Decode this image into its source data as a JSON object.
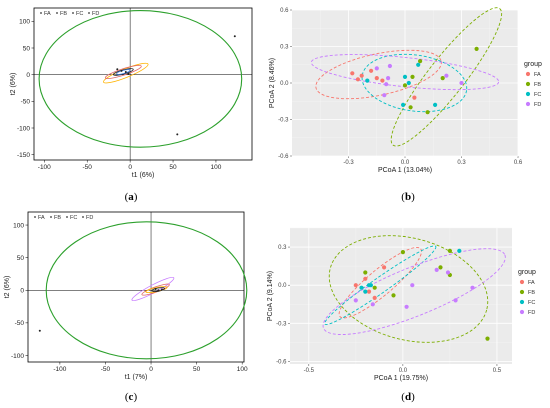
{
  "captions": {
    "a": "(a)",
    "b": "(b)",
    "c": "(c)",
    "d": "(d)"
  },
  "colors": {
    "FA": "#f8766d",
    "FB": "#7cae00",
    "FC": "#00bfc4",
    "FD": "#c77cff",
    "hotelling": "#2ca02c"
  },
  "chart_data": [
    {
      "panel": "a",
      "type": "scatter",
      "xlabel": "t1 (6%)",
      "ylabel": "t2 (6%)",
      "xlim": [
        -112,
        142
      ],
      "ylim": [
        -160,
        125
      ],
      "xticks": [
        "-100",
        "-50",
        "0",
        "50",
        "100"
      ],
      "yticks": [
        "100",
        "50",
        "0",
        "-50",
        "-100",
        "-150"
      ],
      "legend": [
        "FA",
        "FB",
        "FC",
        "FD"
      ],
      "hotelling": {
        "cx": 12,
        "cy": -8,
        "rx": 118,
        "ry": 128
      },
      "ellipses": [
        {
          "group": "FD",
          "color": "#ffb300",
          "cx": -5,
          "cy": 3,
          "rx": 28,
          "ry": 8,
          "angle": 22
        },
        {
          "group": "FA",
          "color": "#e06666",
          "cx": -8,
          "cy": 5,
          "rx": 22,
          "ry": 6,
          "angle": 18
        },
        {
          "group": "FB",
          "color": "#222222",
          "cx": -8,
          "cy": 5,
          "rx": 12,
          "ry": 4,
          "angle": 15
        },
        {
          "group": "FC",
          "color": "#3c78d8",
          "cx": -8,
          "cy": 5,
          "rx": 8,
          "ry": 3,
          "angle": 15
        }
      ],
      "points": [
        {
          "x": 122,
          "y": 72
        },
        {
          "x": 55,
          "y": -112
        },
        {
          "x": -15,
          "y": 10
        },
        {
          "x": -5,
          "y": 5
        },
        {
          "x": -2,
          "y": 2
        },
        {
          "x": -10,
          "y": 7
        }
      ]
    },
    {
      "panel": "b",
      "type": "scatter",
      "xlabel": "PCoA 1 (13.04%)",
      "ylabel": "PCoA 2 (8.46%)",
      "xlim": [
        -0.6,
        0.6
      ],
      "ylim": [
        -0.6,
        0.6
      ],
      "xticks": [
        "-0.3",
        "0.0",
        "0.3",
        "0.6"
      ],
      "yticks": [
        "0.6",
        "0.3",
        "0.0",
        "-0.3",
        "-0.6"
      ],
      "legend_title": "group",
      "legend": [
        "FA",
        "FB",
        "FC",
        "FD"
      ],
      "ellipses": [
        {
          "group": "FA",
          "cx": -0.14,
          "cy": 0.07,
          "rx": 0.34,
          "ry": 0.17,
          "angle": 12
        },
        {
          "group": "FB",
          "cx": 0.22,
          "cy": 0.05,
          "rx": 0.46,
          "ry": 0.15,
          "angle": 52
        },
        {
          "group": "FC",
          "cx": 0.05,
          "cy": 0.0,
          "rx": 0.28,
          "ry": 0.23,
          "angle": -8
        },
        {
          "group": "FD",
          "cx": 0.0,
          "cy": 0.09,
          "rx": 0.5,
          "ry": 0.12,
          "angle": -6
        }
      ],
      "series": [
        {
          "name": "FA",
          "x": [
            -0.28,
            -0.23,
            -0.18,
            -0.15,
            -0.25,
            -0.12,
            0.05
          ],
          "y": [
            0.08,
            0.06,
            0.1,
            0.04,
            0.03,
            0.02,
            -0.12
          ]
        },
        {
          "name": "FB",
          "x": [
            0.04,
            0.08,
            0.2,
            0.38,
            0.03,
            0.0,
            0.12
          ],
          "y": [
            0.05,
            0.18,
            0.04,
            0.28,
            -0.2,
            -0.02,
            -0.24
          ]
        },
        {
          "name": "FC",
          "x": [
            -0.2,
            0.07,
            0.16,
            0.02,
            -0.01,
            0.0
          ],
          "y": [
            0.02,
            0.15,
            -0.18,
            0.0,
            -0.18,
            0.05
          ]
        },
        {
          "name": "FD",
          "x": [
            -0.15,
            -0.08,
            -0.09,
            -0.1,
            0.22,
            0.3,
            -0.11
          ],
          "y": [
            0.12,
            0.14,
            0.04,
            -0.01,
            0.06,
            0.0,
            -0.1
          ]
        }
      ]
    },
    {
      "panel": "c",
      "type": "scatter",
      "xlabel": "t1 (7%)",
      "ylabel": "t2 (6%)",
      "xlim": [
        -135,
        102
      ],
      "ylim": [
        -110,
        120
      ],
      "xticks": [
        "-100",
        "-50",
        "0",
        "50",
        "100"
      ],
      "yticks": [
        "100",
        "50",
        "0",
        "-50",
        "-100"
      ],
      "legend": [
        "FA",
        "FB",
        "FC",
        "FD"
      ],
      "hotelling": {
        "cx": -5,
        "cy": 0,
        "rx": 110,
        "ry": 105
      },
      "ellipses": [
        {
          "group": "FD",
          "color": "#c77cff",
          "cx": 2,
          "cy": 2,
          "rx": 26,
          "ry": 6,
          "angle": 28
        },
        {
          "group": "FA",
          "color": "#e06666",
          "cx": 5,
          "cy": 1,
          "rx": 16,
          "ry": 4,
          "angle": 20
        },
        {
          "group": "FC",
          "color": "#ffb300",
          "cx": 6,
          "cy": 1,
          "rx": 12,
          "ry": 3,
          "angle": 12
        },
        {
          "group": "FB",
          "color": "#222222",
          "cx": 8,
          "cy": 1,
          "rx": 7,
          "ry": 2.5,
          "angle": 10
        }
      ],
      "points": [
        {
          "x": -122,
          "y": -62
        },
        {
          "x": 5,
          "y": 2
        },
        {
          "x": 8,
          "y": 0
        },
        {
          "x": 12,
          "y": 1
        }
      ]
    },
    {
      "panel": "d",
      "type": "scatter",
      "xlabel": "PCoA 1 (19.75%)",
      "ylabel": "PCoA 2 (9.14%)",
      "xlim": [
        -0.6,
        0.58
      ],
      "ylim": [
        -0.62,
        0.45
      ],
      "xticks": [
        "-0.5",
        "0.0",
        "0.5"
      ],
      "yticks": [
        "0.3",
        "0.0",
        "-0.3",
        "-0.6"
      ],
      "legend_title": "group",
      "legend": [
        "FA",
        "FB",
        "FC",
        "FD"
      ],
      "ellipses": [
        {
          "group": "FA",
          "cx": -0.12,
          "cy": 0.02,
          "rx": 0.28,
          "ry": 0.1,
          "angle": 40
        },
        {
          "group": "FB",
          "cx": 0.03,
          "cy": -0.03,
          "rx": 0.43,
          "ry": 0.4,
          "angle": -15
        },
        {
          "group": "FC",
          "cx": -0.12,
          "cy": 0.0,
          "rx": 0.36,
          "ry": 0.06,
          "angle": 35
        },
        {
          "group": "FD",
          "cx": 0.06,
          "cy": -0.05,
          "rx": 0.52,
          "ry": 0.19,
          "angle": 22
        }
      ],
      "series": [
        {
          "name": "FA",
          "x": [
            -0.2,
            -0.25,
            -0.1,
            -0.18,
            -0.15
          ],
          "y": [
            0.05,
            0.0,
            0.14,
            -0.05,
            -0.1
          ]
        },
        {
          "name": "FB",
          "x": [
            -0.2,
            -0.15,
            0.0,
            -0.05,
            0.25,
            0.25,
            0.2,
            0.45
          ],
          "y": [
            0.1,
            -0.02,
            0.26,
            -0.08,
            0.27,
            0.08,
            0.14,
            -0.42
          ]
        },
        {
          "name": "FC",
          "x": [
            -0.22,
            -0.18,
            -0.2,
            -0.17,
            0.3
          ],
          "y": [
            -0.02,
            0.0,
            -0.05,
            0.0,
            0.27
          ]
        },
        {
          "name": "FD",
          "x": [
            -0.16,
            0.02,
            0.18,
            0.24,
            0.37,
            0.05,
            0.28,
            -0.25
          ],
          "y": [
            -0.15,
            -0.17,
            0.12,
            0.1,
            -0.02,
            0.0,
            -0.12,
            -0.12
          ]
        }
      ]
    }
  ]
}
